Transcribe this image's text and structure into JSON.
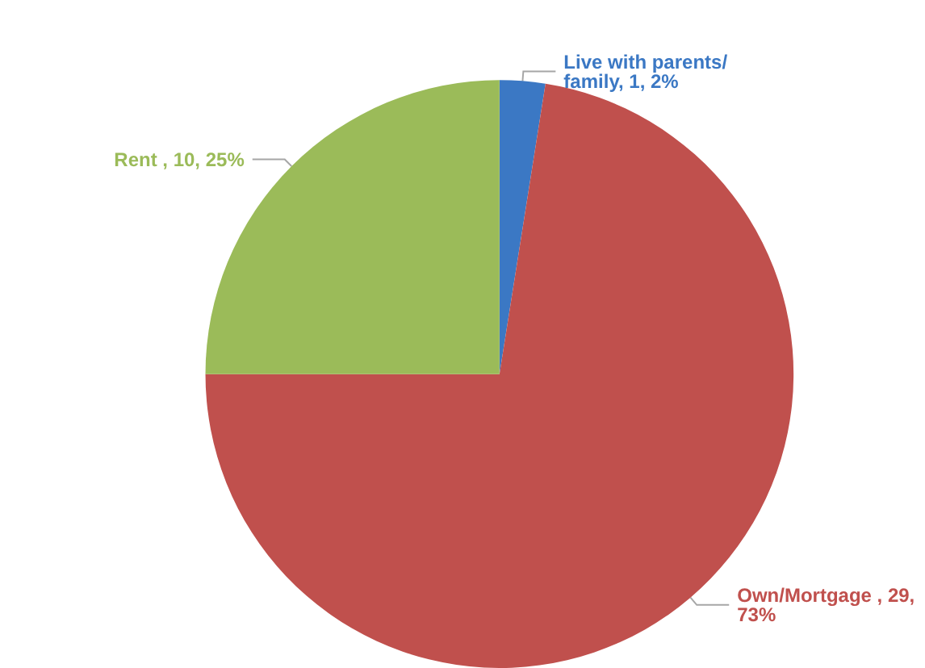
{
  "chart_data": {
    "type": "pie",
    "categories": [
      "Live with parents/family",
      "Own/Mortgage",
      "Rent"
    ],
    "values": [
      1,
      29,
      10
    ],
    "value_labels": [
      ", 1, 2%",
      " , 29, 73%",
      " , 10, 25%"
    ],
    "colors": [
      "#3b78c4",
      "#c0504d",
      "#9bbb59"
    ],
    "legend": false
  }
}
